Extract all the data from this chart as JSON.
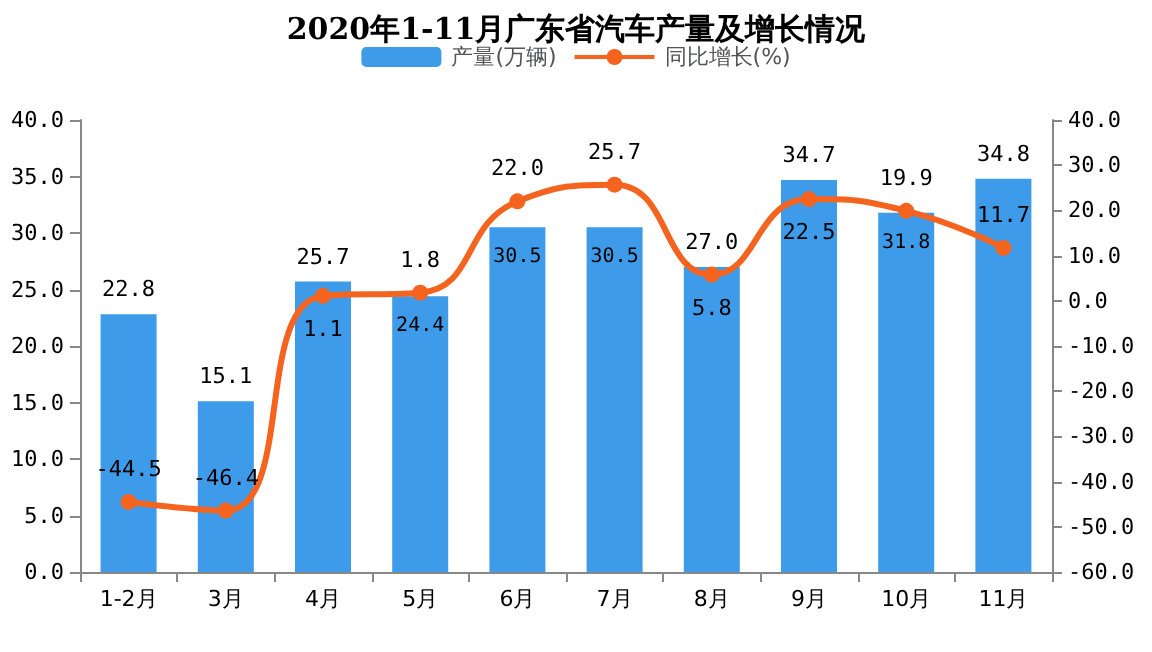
{
  "chart_data": {
    "type": "bar",
    "title": "2020年1-11月广东省汽车产量及增长情况",
    "categories": [
      "1-2月",
      "3月",
      "4月",
      "5月",
      "6月",
      "7月",
      "8月",
      "9月",
      "10月",
      "11月"
    ],
    "series": [
      {
        "name": "产量(万辆)",
        "color": "#3d9be9",
        "values": [
          22.8,
          15.1,
          25.7,
          24.4,
          30.5,
          30.5,
          27.0,
          34.7,
          31.8,
          34.8
        ],
        "value_labels": [
          "22.8",
          "15.1",
          "25.7",
          "24.4",
          "30.5",
          "30.5",
          "27.0",
          "34.7",
          "31.8",
          "34.8"
        ]
      },
      {
        "name": "同比增长(%)",
        "type": "line",
        "axis": "y2",
        "color": "#f4641e",
        "values": [
          -44.5,
          -46.4,
          1.1,
          1.8,
          22.0,
          25.7,
          5.8,
          22.5,
          19.9,
          11.7
        ],
        "value_labels": [
          "-44.5",
          "-46.4",
          "1.1",
          "1.8",
          "22.0",
          "25.7",
          "5.8",
          "22.5",
          "19.9",
          "11.7"
        ]
      }
    ],
    "ylim": [
      0,
      40
    ],
    "yticks": [
      {
        "value": 0,
        "label": "0.0"
      },
      {
        "value": 5,
        "label": "5.0"
      },
      {
        "value": 10,
        "label": "10.0"
      },
      {
        "value": 15,
        "label": "15.0"
      },
      {
        "value": 20,
        "label": "20.0"
      },
      {
        "value": 25,
        "label": "25.0"
      },
      {
        "value": 30,
        "label": "30.0"
      },
      {
        "value": 35,
        "label": "35.0"
      },
      {
        "value": 40,
        "label": "40.0"
      }
    ],
    "y2lim": [
      -60,
      40
    ],
    "y2ticks": [
      {
        "value": -60,
        "label": "-60.0"
      },
      {
        "value": -50,
        "label": "-50.0"
      },
      {
        "value": -40,
        "label": "-40.0"
      },
      {
        "value": -30,
        "label": "-30.0"
      },
      {
        "value": -20,
        "label": "-20.0"
      },
      {
        "value": -10,
        "label": "-10.0"
      },
      {
        "value": 0,
        "label": "0.0"
      },
      {
        "value": 10,
        "label": "10.0"
      },
      {
        "value": 20,
        "label": "20.0"
      },
      {
        "value": 30,
        "label": "30.0"
      },
      {
        "value": 40,
        "label": "40.0"
      }
    ],
    "legend": "top",
    "marker": "circle",
    "grid": false
  }
}
